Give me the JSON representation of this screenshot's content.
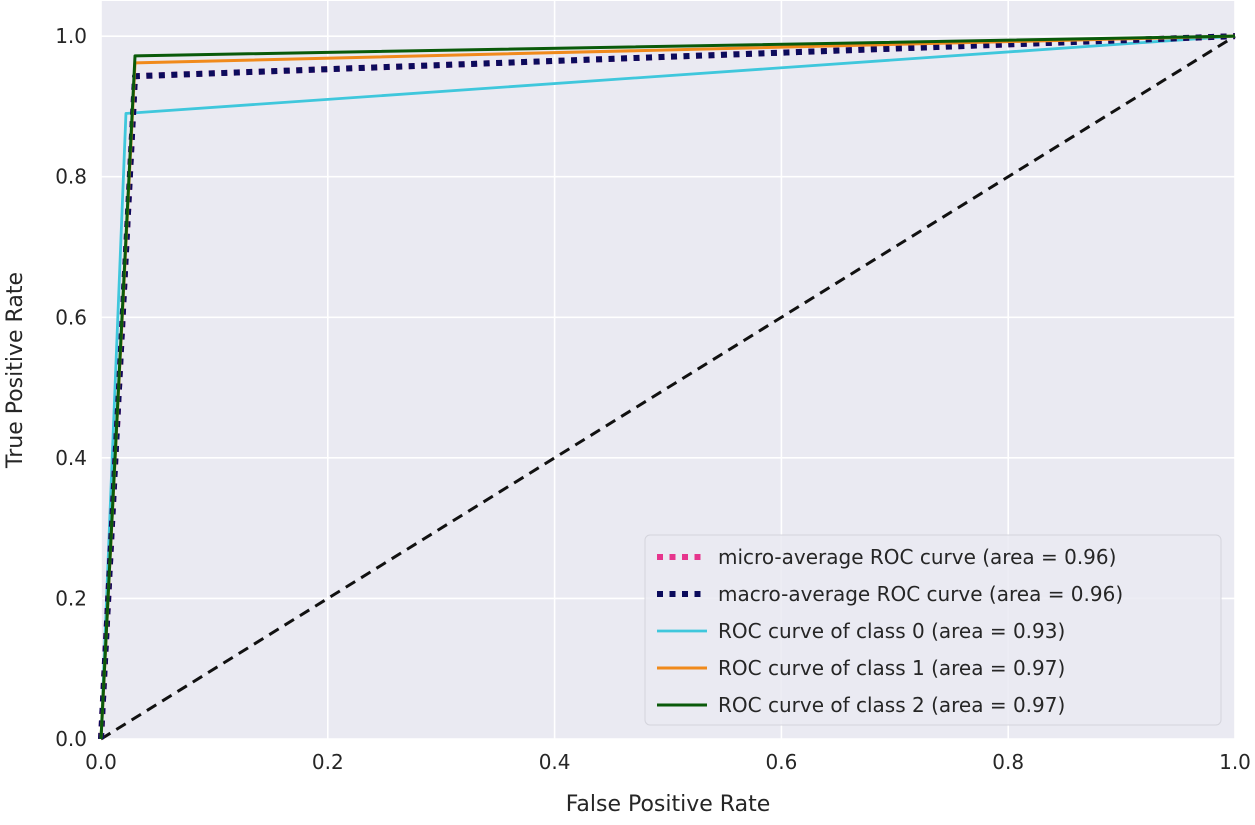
{
  "chart_data": {
    "type": "line",
    "title": "",
    "xlabel": "False Positive Rate",
    "ylabel": "True Positive Rate",
    "xlim": [
      0.0,
      1.0
    ],
    "ylim": [
      0.0,
      1.05
    ],
    "grid": true,
    "legend_position": "lower-right",
    "x_ticks": [
      0.0,
      0.2,
      0.4,
      0.6,
      0.8,
      1.0
    ],
    "y_ticks": [
      0.0,
      0.2,
      0.4,
      0.6,
      0.8,
      1.0
    ],
    "x_tick_labels": [
      "0.0",
      "0.2",
      "0.4",
      "0.6",
      "0.8",
      "1.0"
    ],
    "y_tick_labels": [
      "0.0",
      "0.2",
      "0.4",
      "0.6",
      "0.8",
      "1.0"
    ],
    "colors": {
      "background": "#eaeaf2",
      "grid": "#ffffff",
      "micro": "#e6358d",
      "macro": "#0b0b5c",
      "class0": "#3fc7dc",
      "class1": "#f08a1c",
      "class2": "#0a5a0a",
      "diagonal": "#111111"
    },
    "series": [
      {
        "key": "micro",
        "name": "micro-average ROC curve (area = 0.96)",
        "style": "dotted",
        "x": [
          0.0,
          0.03,
          1.0
        ],
        "y": [
          0.0,
          0.943,
          1.0
        ]
      },
      {
        "key": "macro",
        "name": "macro-average ROC curve (area = 0.96)",
        "style": "dotted",
        "x": [
          0.0,
          0.03,
          1.0
        ],
        "y": [
          0.0,
          0.943,
          1.0
        ]
      },
      {
        "key": "class0",
        "name": "ROC curve of class 0 (area = 0.93)",
        "style": "solid",
        "x": [
          0.0,
          0.022,
          1.0
        ],
        "y": [
          0.0,
          0.89,
          1.0
        ]
      },
      {
        "key": "class1",
        "name": "ROC curve of class 1 (area = 0.97)",
        "style": "solid",
        "x": [
          0.0,
          0.03,
          1.0
        ],
        "y": [
          0.0,
          0.962,
          1.0
        ]
      },
      {
        "key": "class2",
        "name": "ROC curve of class 2 (area = 0.97)",
        "style": "solid",
        "x": [
          0.0,
          0.03,
          1.0
        ],
        "y": [
          0.0,
          0.972,
          1.0
        ]
      }
    ],
    "diagonal": {
      "style": "dashed",
      "x": [
        0.0,
        1.0
      ],
      "y": [
        0.0,
        1.0
      ]
    }
  }
}
